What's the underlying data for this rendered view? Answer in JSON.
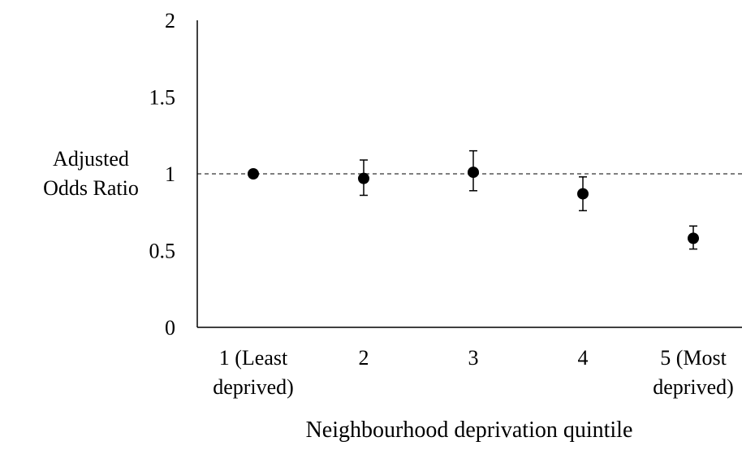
{
  "chart_data": {
    "type": "scatter",
    "title": "",
    "xlabel": "Neighbourhood deprivation quintile",
    "ylabel_lines": [
      "Adjusted",
      "Odds Ratio"
    ],
    "ylim": [
      0,
      2
    ],
    "yticks": [
      "0",
      "0.5",
      "1",
      "1.5",
      "2"
    ],
    "categories": [
      [
        "1 (Least",
        "deprived)"
      ],
      [
        "2"
      ],
      [
        "3"
      ],
      [
        "4"
      ],
      [
        "5 (Most",
        "deprived)"
      ]
    ],
    "series": [
      {
        "values": [
          1.0,
          0.97,
          1.01,
          0.87,
          0.58
        ],
        "error_low": [
          1.0,
          0.86,
          0.89,
          0.76,
          0.51
        ],
        "error_high": [
          1.0,
          1.09,
          1.15,
          0.98,
          0.66
        ]
      }
    ],
    "reference_line": {
      "y": 1,
      "style": "dashed"
    },
    "grid": false,
    "legend": "none"
  }
}
